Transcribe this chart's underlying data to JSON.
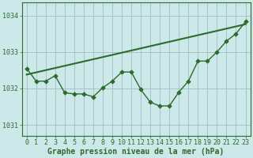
{
  "xlabel": "Graphe pression niveau de la mer (hPa)",
  "hours": [
    0,
    1,
    2,
    3,
    4,
    5,
    6,
    7,
    8,
    9,
    10,
    11,
    12,
    13,
    14,
    15,
    16,
    17,
    18,
    19,
    20,
    21,
    22,
    23
  ],
  "pressure_actual": [
    1032.55,
    1032.2,
    1032.2,
    1032.35,
    1031.88,
    1031.85,
    1031.85,
    1031.77,
    1032.02,
    1032.2,
    1032.45,
    1032.45,
    1031.97,
    1031.62,
    1031.52,
    1031.52,
    1031.9,
    1032.2,
    1032.75,
    1032.75,
    1033.0,
    1033.3,
    1033.5,
    1033.83
  ],
  "pressure_trend": [
    1032.38,
    1032.44,
    1032.5,
    1032.56,
    1032.62,
    1032.68,
    1032.74,
    1032.8,
    1032.86,
    1032.92,
    1032.98,
    1033.04,
    1033.1,
    1033.16,
    1033.22,
    1033.28,
    1033.34,
    1033.4,
    1033.46,
    1033.52,
    1033.58,
    1033.64,
    1033.7,
    1033.76
  ],
  "line_color": "#2d6a2d",
  "bg_color": "#cce8e8",
  "grid_color": "#9bbfbf",
  "ylim_min": 1030.7,
  "ylim_max": 1034.35,
  "yticks": [
    1031,
    1032,
    1033,
    1034
  ],
  "xticks": [
    0,
    1,
    2,
    3,
    4,
    5,
    6,
    7,
    8,
    9,
    10,
    11,
    12,
    13,
    14,
    15,
    16,
    17,
    18,
    19,
    20,
    21,
    22,
    23
  ],
  "marker": "D",
  "markersize": 2.8,
  "actual_linewidth": 1.0,
  "trend_linewidth": 1.5,
  "xlabel_fontsize": 7.0,
  "tick_fontsize": 6.0
}
